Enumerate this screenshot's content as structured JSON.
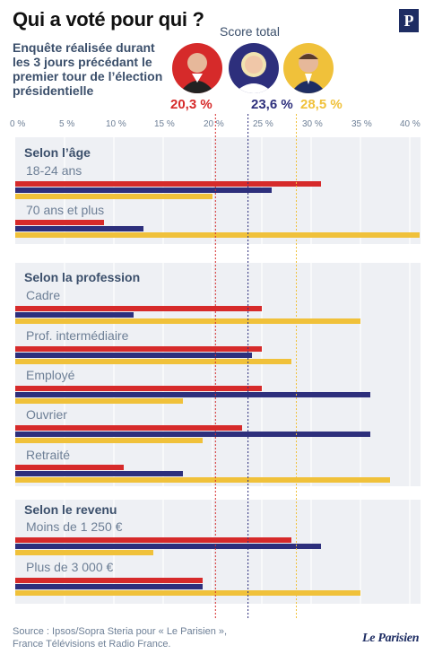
{
  "header": {
    "title": "Qui a voté pour qui ?",
    "subtitle": "Enquête réalisée durant les 3 jours précédant le premier tour de l’élection présidentielle",
    "logo_letter": "P",
    "score_title": "Score total"
  },
  "footer": {
    "source_line1": "Source : Ipsos/Sopra Steria pour « Le Parisien »,",
    "source_line2": "France Télévisions et Radio France.",
    "brand": "Le Parisien"
  },
  "colors": {
    "melenchon": "#d62a2a",
    "le_pen": "#2d2f7c",
    "macron": "#f0c13a",
    "panel_bg": "#eef0f4",
    "text_blue": "#3b4f6b"
  },
  "chart_data": {
    "type": "bar",
    "orientation": "horizontal",
    "xlim": [
      0,
      41
    ],
    "x_ticks": [
      "0 %",
      "5 %",
      "10 %",
      "15 %",
      "20 %",
      "25 %",
      "30 %",
      "35 %",
      "40 %"
    ],
    "series": [
      {
        "key": "melenchon",
        "score": "20,3 %",
        "total": 20.3
      },
      {
        "key": "le_pen",
        "score": "23,6 %",
        "total": 23.6
      },
      {
        "key": "macron",
        "score": "28,5 %",
        "total": 28.5
      }
    ],
    "groups": [
      {
        "title": "Selon l’âge",
        "rows": [
          {
            "label": "18-24 ans",
            "values": [
              31,
              26,
              20
            ]
          },
          {
            "label": "70 ans et plus",
            "values": [
              9,
              13,
              41
            ]
          }
        ]
      },
      {
        "title": "Selon la profession",
        "rows": [
          {
            "label": "Cadre",
            "values": [
              25,
              12,
              35
            ]
          },
          {
            "label": "Prof. intermédiaire",
            "values": [
              25,
              24,
              28
            ]
          },
          {
            "label": "Employé",
            "values": [
              25,
              36,
              17
            ]
          },
          {
            "label": "Ouvrier",
            "values": [
              23,
              36,
              19
            ]
          },
          {
            "label": "Retraité",
            "values": [
              11,
              17,
              38
            ]
          }
        ]
      },
      {
        "title": "Selon le revenu",
        "rows": [
          {
            "label": "Moins de 1 250 €",
            "values": [
              28,
              31,
              14
            ]
          },
          {
            "label": "Plus de 3 000 €",
            "values": [
              19,
              19,
              35
            ]
          }
        ]
      }
    ]
  }
}
